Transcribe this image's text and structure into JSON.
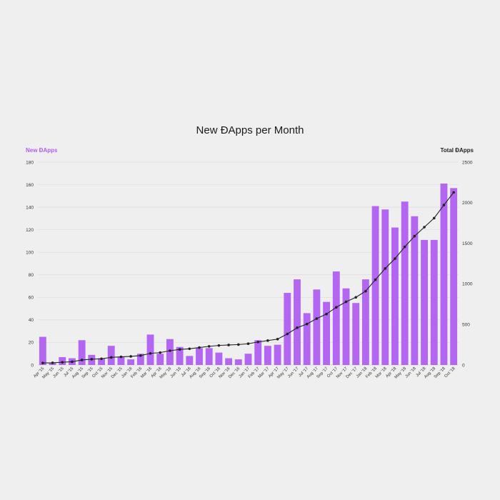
{
  "chart_data": {
    "type": "bar+line",
    "title": "New ÐApps per Month",
    "y_left_label": "New ÐApps",
    "y_right_label": "Total ÐApps",
    "y_left_ticks": [
      "0",
      "20",
      "40",
      "60",
      "80",
      "100",
      "120",
      "140",
      "160",
      "180"
    ],
    "y_right_ticks": [
      "0",
      "500",
      "1000",
      "1500",
      "2000",
      "2500"
    ],
    "ylim_left": [
      0,
      180
    ],
    "ylim_right": [
      0,
      2500
    ],
    "grid": true,
    "colors": {
      "bar": "#b366f2",
      "line": "#222222",
      "left_label": "#b35cf0"
    },
    "categories": [
      "Apr '15",
      "May '15",
      "Jun '15",
      "Jul '15",
      "Aug '15",
      "Sep '15",
      "Oct '15",
      "Nov '15",
      "Dec '15",
      "Jan '16",
      "Feb '16",
      "Mar '16",
      "Apr '16",
      "May '16",
      "Jun '16",
      "Jul '16",
      "Aug '16",
      "Sep '16",
      "Oct '16",
      "Nov '16",
      "Dec '16",
      "Jan '17",
      "Feb '17",
      "Mar '17",
      "Apr '17",
      "May '17",
      "Jun '17",
      "Jul '17",
      "Aug '17",
      "Sep '17",
      "Oct '17",
      "Nov '17",
      "Dec '17",
      "Jan '18",
      "Feb '18",
      "Mar '18",
      "Apr '18",
      "May '18",
      "Jun '18",
      "Jul '18",
      "Aug '18",
      "Sep '18",
      "Oct '18"
    ],
    "series": [
      {
        "name": "New ÐApps",
        "axis": "left",
        "kind": "bar",
        "values": [
          25,
          2,
          7,
          6,
          22,
          9,
          6,
          17,
          7,
          5,
          10,
          27,
          10,
          23,
          16,
          8,
          15,
          15,
          11,
          6,
          5,
          10,
          22,
          17,
          18,
          64,
          76,
          46,
          67,
          56,
          83,
          68,
          55,
          76,
          141,
          138,
          122,
          145,
          132,
          111,
          111,
          161,
          157
        ]
      },
      {
        "name": "Total ÐApps",
        "axis": "right",
        "kind": "line",
        "values": [
          25,
          27,
          34,
          40,
          62,
          71,
          77,
          94,
          101,
          106,
          116,
          143,
          153,
          176,
          192,
          200,
          215,
          230,
          241,
          247,
          252,
          262,
          284,
          301,
          319,
          383,
          459,
          505,
          572,
          628,
          711,
          779,
          834,
          910,
          1051,
          1189,
          1311,
          1456,
          1588,
          1699,
          1810,
          1971,
          2128
        ]
      }
    ]
  }
}
